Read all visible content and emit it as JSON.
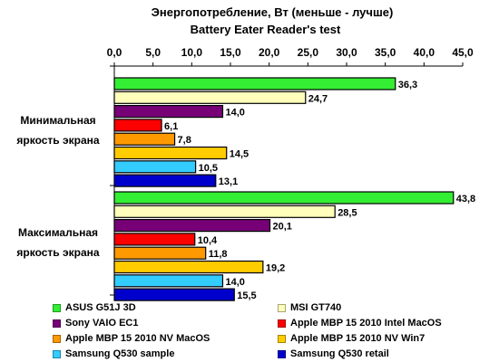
{
  "chart_data": {
    "type": "bar",
    "orientation": "horizontal",
    "title": "Энергопотребление, Вт (меньше - лучше)",
    "subtitle": "Battery Eater Reader's test",
    "xlim": [
      0,
      45
    ],
    "x_ticks": [
      "0,0",
      "5,0",
      "10,0",
      "15,0",
      "20,0",
      "25,0",
      "30,0",
      "35,0",
      "40,0",
      "45,0"
    ],
    "x_tick_values": [
      0,
      5,
      10,
      15,
      20,
      25,
      30,
      35,
      40,
      45
    ],
    "grid": false,
    "legend_position": "bottom",
    "categories": [
      [
        "Минимальная",
        "яркость экрана"
      ],
      [
        "Максимальная",
        "яркость экрана"
      ]
    ],
    "series": [
      {
        "name": "ASUS G51J 3D",
        "color": "#33ee33",
        "values": [
          36.3,
          43.8
        ],
        "labels": [
          "36,3",
          "43,8"
        ]
      },
      {
        "name": "MSI GT740",
        "color": "#ffffbb",
        "values": [
          24.7,
          28.5
        ],
        "labels": [
          "24,7",
          "28,5"
        ]
      },
      {
        "name": "Sony VAIO EC1",
        "color": "#770077",
        "values": [
          14.0,
          20.1
        ],
        "labels": [
          "14,0",
          "20,1"
        ]
      },
      {
        "name": "Apple MBP 15 2010 Intel MacOS",
        "color": "#ff0000",
        "values": [
          6.1,
          10.4
        ],
        "labels": [
          "6,1",
          "10,4"
        ]
      },
      {
        "name": "Apple MBP 15 2010 NV MacOS",
        "color": "#ff9900",
        "values": [
          7.8,
          11.8
        ],
        "labels": [
          "7,8",
          "11,8"
        ]
      },
      {
        "name": "Apple MBP 15 2010 NV Win7",
        "color": "#ffcc00",
        "values": [
          14.5,
          19.2
        ],
        "labels": [
          "14,5",
          "19,2"
        ]
      },
      {
        "name": "Samsung Q530 sample",
        "color": "#33ccff",
        "values": [
          10.5,
          14.0
        ],
        "labels": [
          "10,5",
          "14,0"
        ]
      },
      {
        "name": "Samsung Q530 retail",
        "color": "#0000cc",
        "values": [
          13.1,
          15.5
        ],
        "labels": [
          "13,1",
          "15,5"
        ]
      }
    ]
  }
}
